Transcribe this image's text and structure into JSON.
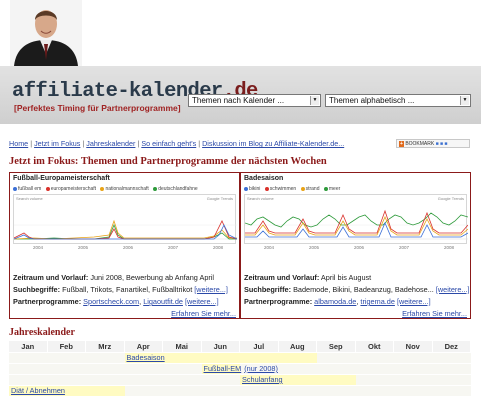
{
  "header": {
    "logo_text": "affiliate-kalender",
    "logo_tld": ".de",
    "tagline": "[Perfektes Timing für Partnerprogramme]",
    "select_calendar": "Themen nach Kalender ...",
    "select_alpha": "Themen alphabetisch ..."
  },
  "nav": {
    "items": [
      "Home",
      "Jetzt im Fokus",
      "Jahreskalender",
      "So einfach geht's",
      "Diskussion im Blog zu Affiliate-Kalender.de..."
    ],
    "separator": "|",
    "bookmark": "BOOKMARK"
  },
  "focus": {
    "heading": "Jetzt im Fokus: Themen und Partnerprogramme der nächsten Wochen",
    "left": {
      "title": "Fußball-Europameisterschaft",
      "legend": [
        {
          "label": "fußball em",
          "color": "#3b6fd6"
        },
        {
          "label": "europameisterschaft",
          "color": "#d9312b"
        },
        {
          "label": "nationalmannschaft",
          "color": "#e8a317"
        },
        {
          "label": "deutschlandfahne",
          "color": "#2d9a3a"
        }
      ],
      "chart_left_label": "Search volume",
      "chart_right_label": "Google Trends",
      "years": [
        "2004",
        "2005",
        "2006",
        "2007",
        "2008"
      ],
      "zeitraum_label": "Zeitraum und Vorlauf:",
      "zeitraum_value": "Juni 2008, Bewerbung ab Anfang April",
      "such_label": "Suchbegriffe:",
      "such_value": "Fußball, Trikots, Fanartikel, Fußballtrikot",
      "such_more": "[weitere...]",
      "partner_label": "Partnerprogramme:",
      "partner_1": "Sportscheck.com",
      "partner_2": "Ligaoutfit.de",
      "partner_more": "[weitere...]",
      "more": "Erfahren Sie mehr..."
    },
    "right": {
      "title": "Badesaison",
      "legend": [
        {
          "label": "bikini",
          "color": "#3b6fd6"
        },
        {
          "label": "schwimmen",
          "color": "#d9312b"
        },
        {
          "label": "strand",
          "color": "#e8a317"
        },
        {
          "label": "meer",
          "color": "#2d9a3a"
        }
      ],
      "chart_left_label": "Search volume",
      "chart_right_label": "Google Trends",
      "years": [
        "2004",
        "2005",
        "2006",
        "2007",
        "2008"
      ],
      "zeitraum_label": "Zeitraum und Vorlauf:",
      "zeitraum_value": "April bis August",
      "such_label": "Suchbegriffe:",
      "such_value": "Bademode, Bikini, Badeanzug, Badehose...",
      "such_more": "[weitere...]",
      "partner_label": "Partnerprogramme:",
      "partner_1": "albamoda.de",
      "partner_2": "trigema.de",
      "partner_more": "[weitere...]",
      "more": "Erfahren Sie mehr..."
    }
  },
  "calendar": {
    "heading": "Jahreskalender",
    "months": [
      "Jan",
      "Feb",
      "Mrz",
      "Apr",
      "Mai",
      "Jun",
      "Jul",
      "Aug",
      "Sep",
      "Okt",
      "Nov",
      "Dez"
    ],
    "events": [
      {
        "label": "Badesaison",
        "note": "",
        "start_month": 4,
        "end_month": 8
      },
      {
        "label": "Fußball-EM",
        "note": "(nur 2008)",
        "start_month": 6,
        "end_month": 6
      },
      {
        "label": "Schulanfang",
        "note": "",
        "start_month": 7,
        "end_month": 9
      },
      {
        "label": "Diät / Abnehmen",
        "note": "",
        "start_month": 1,
        "end_month": 3
      }
    ]
  }
}
